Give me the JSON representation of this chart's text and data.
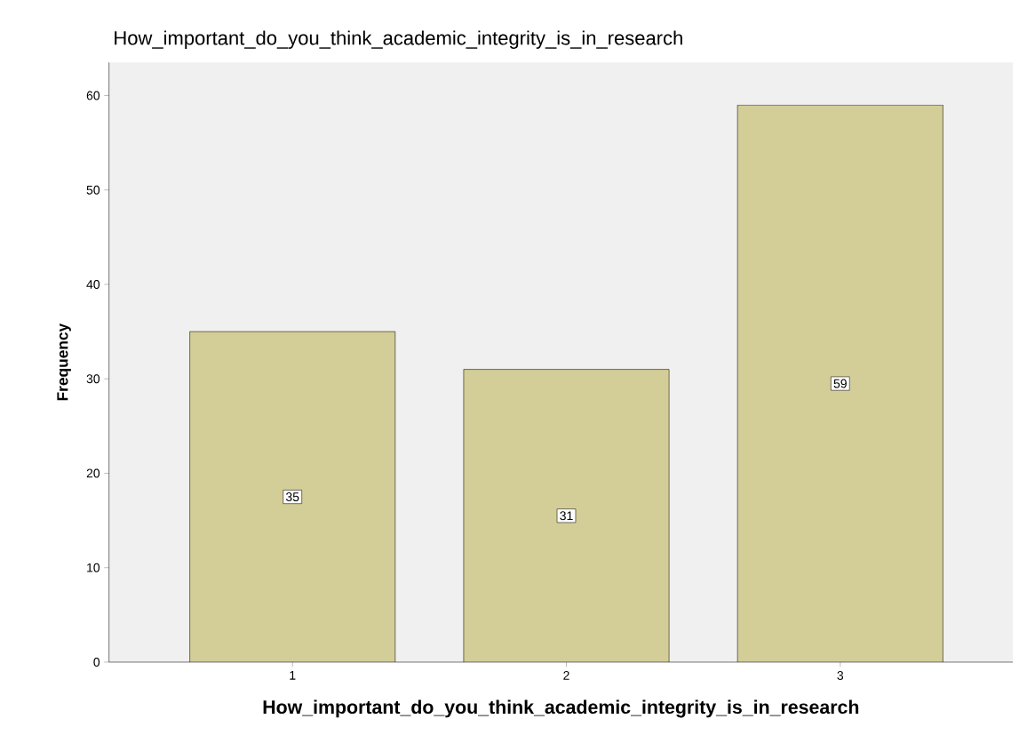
{
  "chart_data": {
    "type": "bar",
    "title": "How_important_do_you_think_academic_integrity_is_in_research",
    "xlabel": "How_important_do_you_think_academic_integrity_is_in_research",
    "ylabel": "Frequency",
    "categories": [
      "1",
      "2",
      "3"
    ],
    "values": [
      35,
      31,
      59
    ],
    "color": "#d3ce97",
    "ylim": [
      0,
      63.5
    ],
    "yticks": [
      0,
      10,
      20,
      30,
      40,
      50,
      60
    ],
    "grid": false,
    "data_labels": true
  }
}
